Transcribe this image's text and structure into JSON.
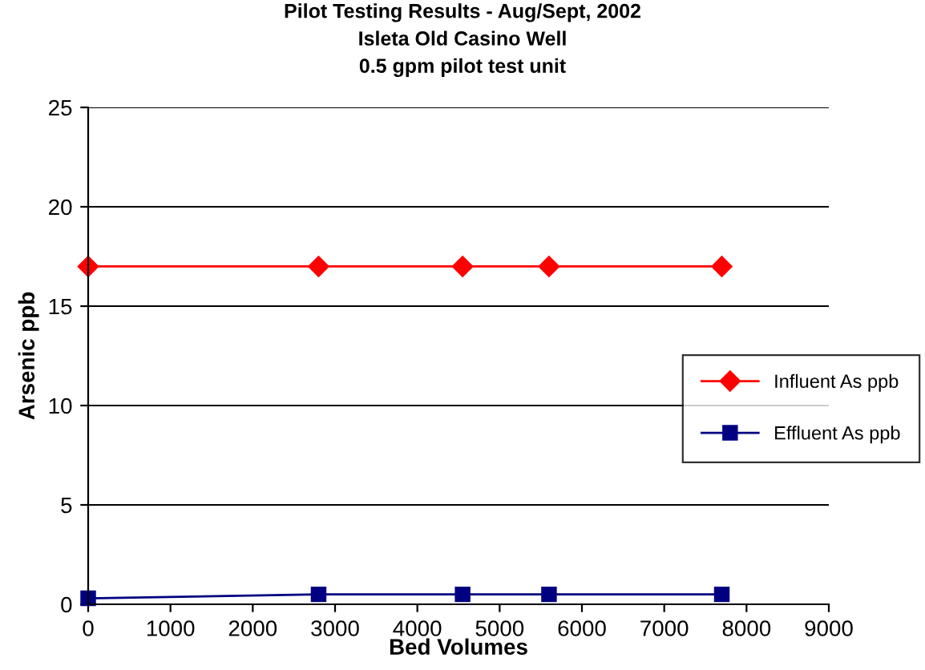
{
  "chart_data": {
    "type": "line",
    "title": "Pilot Testing Results - Aug/Sept, 2002\nIsleta Old Casino Well\n0.5 gpm pilot test unit",
    "xlabel": "Bed Volumes",
    "ylabel": "Arsenic ppb",
    "xlim": [
      0,
      9000
    ],
    "xticks": [
      0,
      1000,
      2000,
      3000,
      4000,
      5000,
      6000,
      7000,
      8000,
      9000
    ],
    "ylim": [
      0,
      25
    ],
    "yticks": [
      0,
      5,
      10,
      15,
      20,
      25
    ],
    "grid": "y",
    "legend": "right",
    "series": [
      {
        "name": "Influent As ppb",
        "color": "#ff0000",
        "marker": "diamond",
        "x": [
          0,
          2800,
          4550,
          5600,
          7700
        ],
        "values": [
          17,
          17,
          17,
          17,
          17
        ]
      },
      {
        "name": "Effluent As ppb",
        "color": "#000080",
        "marker": "square",
        "x": [
          0,
          2800,
          4550,
          5600,
          7700
        ],
        "values": [
          0.3,
          0.5,
          0.5,
          0.5,
          0.5
        ]
      }
    ]
  }
}
